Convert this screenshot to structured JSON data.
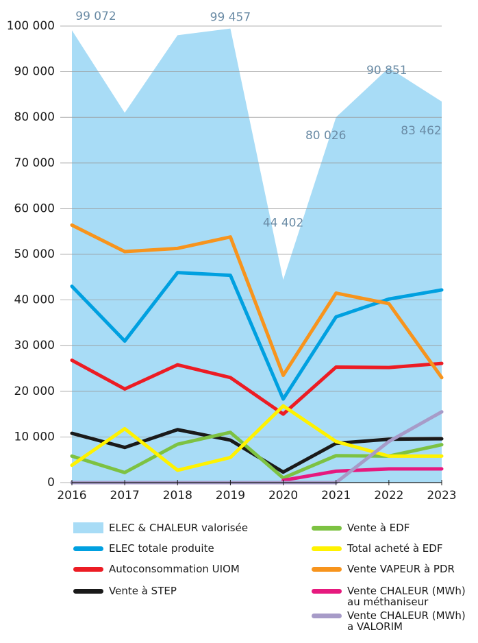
{
  "chart_data": {
    "type": "line",
    "x": [
      2016,
      2017,
      2018,
      2019,
      2020,
      2021,
      2022,
      2023
    ],
    "xlim": [
      2016,
      2023
    ],
    "xticks": [
      2016,
      2017,
      2018,
      2019,
      2020,
      2021,
      2022,
      2023
    ],
    "ylim": [
      0,
      100000
    ],
    "yticks": [
      0,
      {
        "value": 10000,
        "label": "10 000"
      },
      {
        "value": 20000,
        "label": "20 000"
      },
      {
        "value": 30000,
        "label": "30 000"
      },
      {
        "value": 40000,
        "label": "40 000"
      },
      {
        "value": 50000,
        "label": "50 000"
      },
      {
        "value": 60000,
        "label": "60 000"
      },
      {
        "value": 70000,
        "label": "70 000"
      },
      {
        "value": 80000,
        "label": "80 000"
      },
      {
        "value": 90000,
        "label": "90 000"
      },
      {
        "value": 100000,
        "label": "100 000"
      }
    ],
    "grid": true,
    "series": [
      {
        "name": "ELEC & CHALEUR valorisée",
        "kind": "area",
        "color": "#a8dcf6",
        "values": [
          99072,
          81000,
          98000,
          99457,
          44402,
          80026,
          90851,
          83462
        ],
        "value_labels": [
          "99 072",
          null,
          null,
          "99 457",
          "44 402",
          "80 026",
          "90 851",
          "83 462"
        ]
      },
      {
        "name": "ELEC totale produite",
        "color": "#00a0e0",
        "values": [
          43000,
          31000,
          46000,
          45400,
          18300,
          36300,
          40200,
          42200
        ]
      },
      {
        "name": "Autoconsommation UIOM",
        "color": "#ec1c24",
        "values": [
          26800,
          20500,
          25800,
          23000,
          15000,
          25300,
          25200,
          26100
        ]
      },
      {
        "name": "Vente à STEP",
        "color": "#1a1a1a",
        "values": [
          10800,
          7700,
          11600,
          9300,
          2300,
          8600,
          9500,
          9600
        ]
      },
      {
        "name": "Vente à EDF",
        "color": "#7dc242",
        "values": [
          5800,
          2200,
          8400,
          11000,
          1000,
          5900,
          5800,
          8300
        ]
      },
      {
        "name": "Total acheté à EDF",
        "color": "#fff200",
        "values": [
          3800,
          11800,
          2700,
          5500,
          16800,
          9000,
          5800,
          5800
        ]
      },
      {
        "name": "Vente VAPEUR à PDR",
        "color": "#f7941d",
        "values": [
          56400,
          50600,
          51300,
          53800,
          23500,
          41500,
          39200,
          23000
        ]
      },
      {
        "name": "Vente CHALEUR (MWh)\nau méthaniseur",
        "color": "#e6197e",
        "values": [
          null,
          null,
          null,
          null,
          500,
          2500,
          3000,
          3000
        ]
      },
      {
        "name": "Vente CHALEUR (MWh)\na VALORIM",
        "color": "#a79bc8",
        "values": [
          0,
          0,
          0,
          0,
          0,
          0,
          9000,
          15500
        ]
      }
    ]
  }
}
